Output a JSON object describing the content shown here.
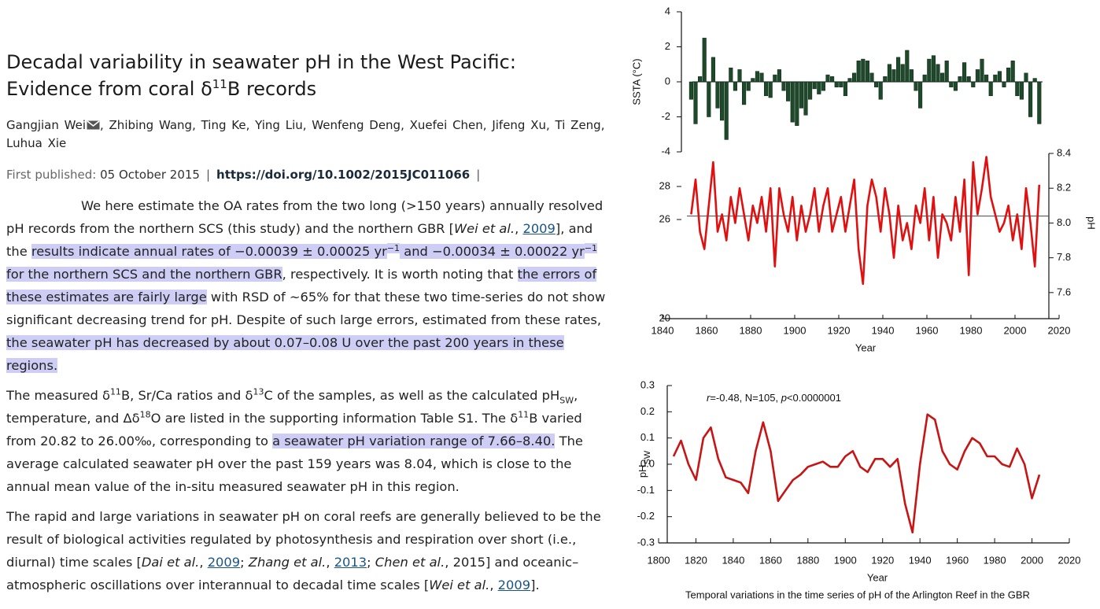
{
  "article": {
    "title": [
      "Decadal variability in seawater pH in the West Pacific: Evidence from coral δ",
      "11",
      "B records"
    ],
    "authors": [
      "Gangjian Wei",
      ", Zhibing Wang, Ting Ke, Ying Liu, Wenfeng Deng, Xuefei Chen, Jifeng Xu, Ti Zeng, Luhua Xie"
    ],
    "published_label": "First published:",
    "published_date": "05 October 2015",
    "separator": "|",
    "doi": "https://doi.org/10.1002/2015JC011066",
    "paragraphs": [
      [
        {
          "text": "We here estimate the OA rates from the two long (>150 years) annually resolved pH records from the northern SCS (this study) and the northern GBR ["
        },
        {
          "text": "Wei et al.",
          "style": "i"
        },
        {
          "text": ", "
        },
        {
          "text": "2009",
          "style": "a"
        },
        {
          "text": "], and the "
        },
        {
          "text": "results indicate annual rates of −0.00039 ± 0.00025 yr",
          "style": "h"
        },
        {
          "text": "−1",
          "style": "hsup"
        },
        {
          "text": " and −0.00034 ± 0.00022 yr",
          "style": "h"
        },
        {
          "text": "−1",
          "style": "hsup"
        },
        {
          "text": " for the northern SCS and the northern GBR",
          "style": "h"
        },
        {
          "text": ", respectively. It is worth noting that "
        },
        {
          "text": "the errors of these estimates are fairly large",
          "style": "h"
        },
        {
          "text": " with RSD of ∼65% for that these two time-series do not show significant decreasing trend for pH. Despite of such large errors, estimated from these rates, "
        },
        {
          "text": "the seawater pH has decreased by about 0.07–0.08 U over the past 200 years in these regions.",
          "style": "h"
        }
      ],
      [
        {
          "text": "The measured δ"
        },
        {
          "text": "11",
          "style": "sup"
        },
        {
          "text": "B, Sr/Ca ratios and δ"
        },
        {
          "text": "13",
          "style": "sup"
        },
        {
          "text": "C of the samples, as well as the calculated pH"
        },
        {
          "text": "SW",
          "style": "sub"
        },
        {
          "text": ", temperature, and Δδ"
        },
        {
          "text": "18",
          "style": "sup"
        },
        {
          "text": "O are listed in the supporting information Table S1. The δ"
        },
        {
          "text": "11",
          "style": "sup"
        },
        {
          "text": "B varied from 20.82 to 26.00‰, corresponding to "
        },
        {
          "text": "a seawater pH variation range of 7.66–8.40.",
          "style": "h"
        },
        {
          "text": " The average calculated seawater pH over the past 159 years was 8.04, which is close to the annual mean value of the in-situ measured seawater pH in this region."
        }
      ],
      [
        {
          "text": "The rapid and large variations in seawater pH on coral reefs are generally believed to be the result of biological activities regulated by photosynthesis and respiration over short (i.e., diurnal) time scales ["
        },
        {
          "text": "Dai et al.",
          "style": "i"
        },
        {
          "text": ", "
        },
        {
          "text": "2009",
          "style": "a"
        },
        {
          "text": "; "
        },
        {
          "text": "Zhang et al.",
          "style": "i"
        },
        {
          "text": ", "
        },
        {
          "text": "2013",
          "style": "a"
        },
        {
          "text": "; "
        },
        {
          "text": "Chen et al.",
          "style": "i"
        },
        {
          "text": ", 2015] and oceanic–atmospheric oscillations over interannual to decadal time scales ["
        },
        {
          "text": "Wei et al.",
          "style": "i"
        },
        {
          "text": ", "
        },
        {
          "text": "2009",
          "style": "a"
        },
        {
          "text": "]."
        }
      ]
    ]
  },
  "chart_data": [
    {
      "type": "bar",
      "ylabel": "SSTA (°C)",
      "color": "#1d4a2a",
      "x": [
        1853,
        1855,
        1857,
        1859,
        1861,
        1863,
        1865,
        1867,
        1869,
        1871,
        1873,
        1875,
        1877,
        1879,
        1881,
        1883,
        1885,
        1887,
        1889,
        1891,
        1893,
        1895,
        1897,
        1899,
        1901,
        1903,
        1905,
        1907,
        1909,
        1911,
        1913,
        1915,
        1917,
        1919,
        1921,
        1923,
        1925,
        1927,
        1929,
        1931,
        1933,
        1935,
        1937,
        1939,
        1941,
        1943,
        1945,
        1947,
        1949,
        1951,
        1953,
        1955,
        1957,
        1959,
        1961,
        1963,
        1965,
        1967,
        1969,
        1971,
        1973,
        1975,
        1977,
        1979,
        1981,
        1983,
        1985,
        1987,
        1989,
        1991,
        1993,
        1995,
        1997,
        1999,
        2001,
        2003,
        2005,
        2007,
        2009,
        2011
      ],
      "values": [
        -1,
        -2.4,
        0.3,
        2.5,
        -2,
        1.4,
        -1.5,
        -2.2,
        -3.3,
        0.8,
        -0.5,
        0.7,
        -1.3,
        -0.5,
        0.2,
        0.6,
        0.5,
        -0.8,
        -0.9,
        0.4,
        0.7,
        -0.5,
        -1.1,
        -2.3,
        -2.5,
        -1.5,
        -1.9,
        -1,
        -0.4,
        -0.7,
        -0.5,
        0.4,
        0.3,
        -0.3,
        -0.3,
        -0.8,
        0.2,
        0.5,
        1.2,
        1.3,
        1.2,
        0.5,
        -0.3,
        -1,
        0.3,
        1,
        0.7,
        1.4,
        1,
        1.8,
        0.7,
        -0.5,
        -1.5,
        0.4,
        1.3,
        1.5,
        1,
        0.5,
        1.2,
        -0.3,
        -0.5,
        0.3,
        1.1,
        0.3,
        -0.3,
        0.7,
        1.3,
        0.4,
        -0.8,
        0.4,
        0.6,
        -0.3,
        0.8,
        1.2,
        -0.8,
        -1,
        0.5,
        -2,
        0.2,
        -2.4
      ],
      "xlim": [
        1840,
        2020
      ],
      "ylim": [
        -4,
        4
      ],
      "yticks": [
        -4,
        -2,
        0,
        2,
        4
      ]
    },
    {
      "type": "line",
      "xlabel": "Year",
      "y2label": "pH",
      "color": "#e01010",
      "axis": "y2",
      "reference_line": 8.04,
      "x": [
        1853,
        1855,
        1857,
        1859,
        1861,
        1863,
        1865,
        1867,
        1869,
        1871,
        1873,
        1875,
        1877,
        1879,
        1881,
        1883,
        1885,
        1887,
        1889,
        1891,
        1893,
        1895,
        1897,
        1899,
        1901,
        1903,
        1905,
        1907,
        1909,
        1911,
        1913,
        1915,
        1917,
        1919,
        1921,
        1923,
        1925,
        1927,
        1929,
        1931,
        1933,
        1935,
        1937,
        1939,
        1941,
        1943,
        1945,
        1947,
        1949,
        1951,
        1953,
        1955,
        1957,
        1959,
        1961,
        1963,
        1965,
        1967,
        1969,
        1971,
        1973,
        1975,
        1977,
        1979,
        1981,
        1983,
        1985,
        1987,
        1989,
        1991,
        1993,
        1995,
        1997,
        1999,
        2001,
        2003,
        2005,
        2007,
        2009,
        2011
      ],
      "values": [
        8.05,
        8.25,
        7.95,
        7.85,
        8.1,
        8.35,
        7.95,
        8.05,
        7.9,
        8.15,
        8.0,
        8.2,
        8.05,
        7.9,
        8.1,
        8.0,
        8.15,
        7.95,
        8.2,
        7.75,
        8.2,
        8.05,
        7.95,
        8.15,
        7.9,
        8.1,
        7.95,
        8.05,
        8.2,
        7.95,
        8.1,
        8.2,
        7.95,
        8.05,
        8.15,
        7.95,
        8.1,
        8.25,
        7.85,
        7.65,
        8.1,
        8.25,
        8.15,
        7.95,
        8.2,
        8.05,
        7.8,
        8.1,
        7.9,
        8.0,
        7.85,
        8.1,
        8.0,
        8.2,
        7.9,
        8.15,
        7.8,
        8.05,
        8.0,
        7.9,
        8.15,
        7.95,
        8.25,
        7.7,
        8.35,
        8.05,
        8.2,
        8.38,
        8.15,
        8.05,
        7.95,
        8.0,
        8.1,
        7.9,
        8.05,
        7.85,
        8.2,
        8.0,
        7.75,
        8.22
      ],
      "xlim": [
        1840,
        2020
      ],
      "xticks": [
        1840,
        1860,
        1880,
        1900,
        1920,
        1940,
        1960,
        1980,
        2000,
        2020
      ],
      "ylim": [
        20,
        30
      ],
      "yticks": [
        20,
        26,
        28
      ],
      "y2lim": [
        7.45,
        8.4
      ],
      "y2ticks": [
        7.6,
        7.8,
        {
          "value": 8,
          "label": "8.0"
        },
        8.2,
        8.4
      ]
    },
    {
      "type": "line",
      "xlabel": "Year",
      "ylabel": "pH",
      "ylabel_sub": "SW",
      "annotation": [
        {
          "text": "r",
          "style": "i"
        },
        {
          "text": "=-0.48, N=105, "
        },
        {
          "text": "p",
          "style": "i"
        },
        {
          "text": "<0.0000001"
        }
      ],
      "caption": "Temporal variations in the time series of pH of the Arlington Reef in the GBR",
      "color": "#c81414",
      "x": [
        1808,
        1812,
        1816,
        1820,
        1824,
        1828,
        1832,
        1836,
        1840,
        1844,
        1848,
        1852,
        1856,
        1860,
        1864,
        1868,
        1872,
        1876,
        1880,
        1884,
        1888,
        1892,
        1896,
        1900,
        1904,
        1908,
        1912,
        1916,
        1920,
        1924,
        1928,
        1932,
        1936,
        1940,
        1944,
        1948,
        1952,
        1956,
        1960,
        1964,
        1968,
        1972,
        1976,
        1980,
        1984,
        1988,
        1992,
        1996,
        2000,
        2004
      ],
      "values": [
        0.03,
        0.09,
        0.0,
        -0.06,
        0.1,
        0.14,
        0.02,
        -0.05,
        -0.06,
        -0.07,
        -0.11,
        0.05,
        0.16,
        0.05,
        -0.14,
        -0.1,
        -0.06,
        -0.04,
        -0.01,
        0.0,
        0.01,
        -0.01,
        -0.01,
        0.03,
        0.05,
        -0.01,
        -0.03,
        0.02,
        0.02,
        -0.01,
        0.02,
        -0.15,
        -0.26,
        0.0,
        0.19,
        0.17,
        0.05,
        0.0,
        -0.02,
        0.05,
        0.1,
        0.08,
        0.03,
        0.03,
        0.0,
        -0.01,
        0.06,
        0.0,
        -0.13,
        -0.04
      ],
      "xlim": [
        1800,
        2020
      ],
      "xticks": [
        1800,
        1820,
        1840,
        1860,
        1880,
        1900,
        1920,
        1940,
        1960,
        1980,
        2000,
        2020
      ],
      "ylim": [
        -0.3,
        0.3
      ],
      "yticks": [
        -0.3,
        -0.2,
        -0.1,
        {
          "value": 0,
          "label": "0.0"
        },
        0.1,
        0.2,
        0.3
      ]
    }
  ]
}
